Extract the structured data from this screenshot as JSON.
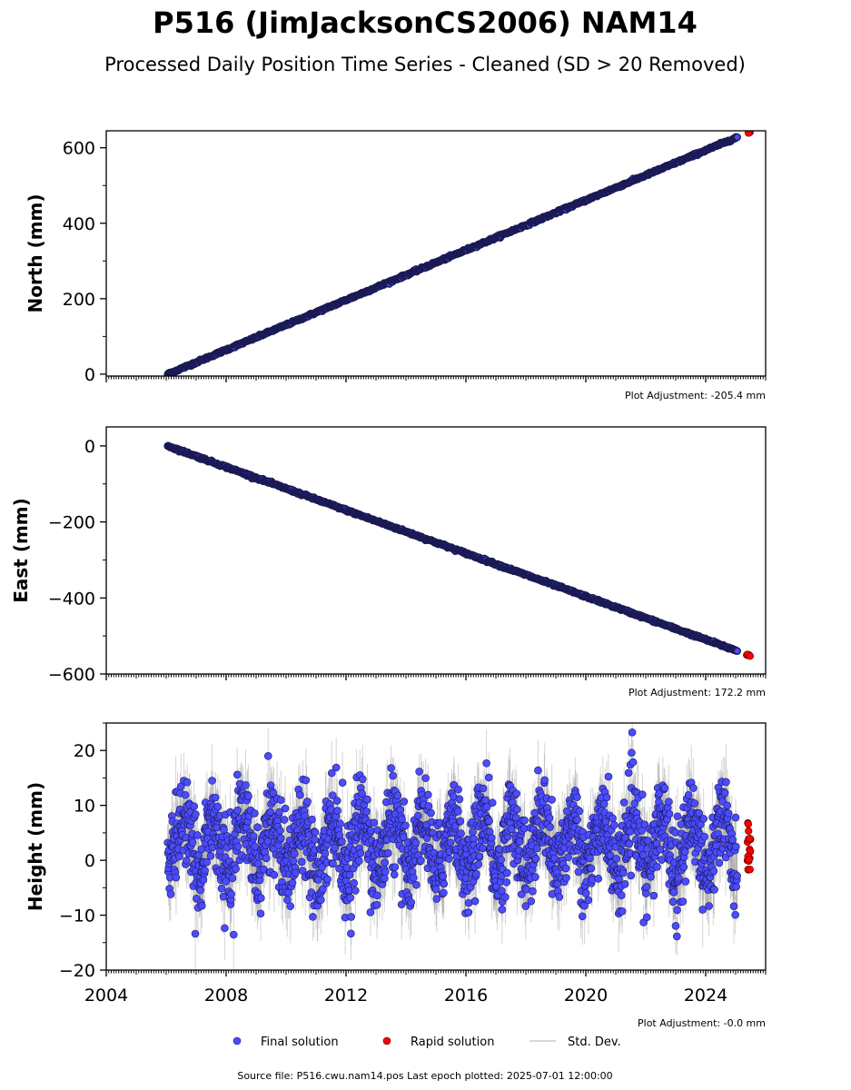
{
  "header": {
    "title": "P516 (JimJacksonCS2006) NAM14",
    "subtitle": "Processed Daily Position Time Series - Cleaned (SD > 20 Removed)"
  },
  "footer": {
    "source": "Source file: P516.cwu.nam14.pos  Last epoch plotted: 2025-07-01 12:00:00"
  },
  "legend": {
    "placement": "bottom-center",
    "items": [
      {
        "label": "Final solution",
        "color": "#4b4bff",
        "marker": "circle"
      },
      {
        "label": "Rapid solution",
        "color": "#ff0000",
        "marker": "circle"
      },
      {
        "label": "Std. Dev.",
        "color": "#cccccc",
        "marker": "line"
      }
    ]
  },
  "colors": {
    "final": "#4b4bff",
    "final_edge": "#1a1a55",
    "rapid": "#ff0000",
    "stddev": "#888888"
  },
  "chart_data": [
    {
      "type": "scatter",
      "ylabel": "North (mm)",
      "xlim": [
        2004,
        2026
      ],
      "ylim": [
        -5,
        645
      ],
      "yticks": [
        0,
        200,
        400,
        600
      ],
      "xticks": [
        2004,
        2008,
        2012,
        2016,
        2020,
        2024
      ],
      "show_xtick_labels": false,
      "adjustment": "Plot Adjustment: -205.4 mm",
      "start_year": 2006.05,
      "end_final": 2025.05,
      "end_rapid": 2025.5,
      "start_value": 0,
      "end_value": 643,
      "noise_mm": 1.5,
      "grid": false
    },
    {
      "type": "scatter",
      "ylabel": "East (mm)",
      "xlim": [
        2004,
        2026
      ],
      "ylim": [
        -600,
        50
      ],
      "yticks": [
        0,
        -200,
        -400,
        -600
      ],
      "xticks": [
        2004,
        2008,
        2012,
        2016,
        2020,
        2024
      ],
      "show_xtick_labels": false,
      "adjustment": "Plot Adjustment: 172.2 mm",
      "start_year": 2006.05,
      "end_final": 2025.05,
      "end_rapid": 2025.5,
      "start_value": 0,
      "end_value": -552,
      "noise_mm": 1.5,
      "grid": false
    },
    {
      "type": "scatter",
      "ylabel": "Height (mm)",
      "xlim": [
        2004,
        2026
      ],
      "ylim": [
        -20,
        25
      ],
      "yticks": [
        20,
        10,
        0,
        -10,
        -20
      ],
      "xticks": [
        2004,
        2008,
        2012,
        2016,
        2020,
        2024
      ],
      "show_xtick_labels": true,
      "adjustment": "Plot Adjustment: -0.0 mm",
      "start_year": 2006.05,
      "end_final": 2025.05,
      "end_rapid": 2025.5,
      "mean_mm": 3,
      "seasonal_amplitude_mm": 5,
      "noise_mm": 4,
      "rapid_range_mm": [
        -2.5,
        8
      ],
      "grid": false
    }
  ]
}
